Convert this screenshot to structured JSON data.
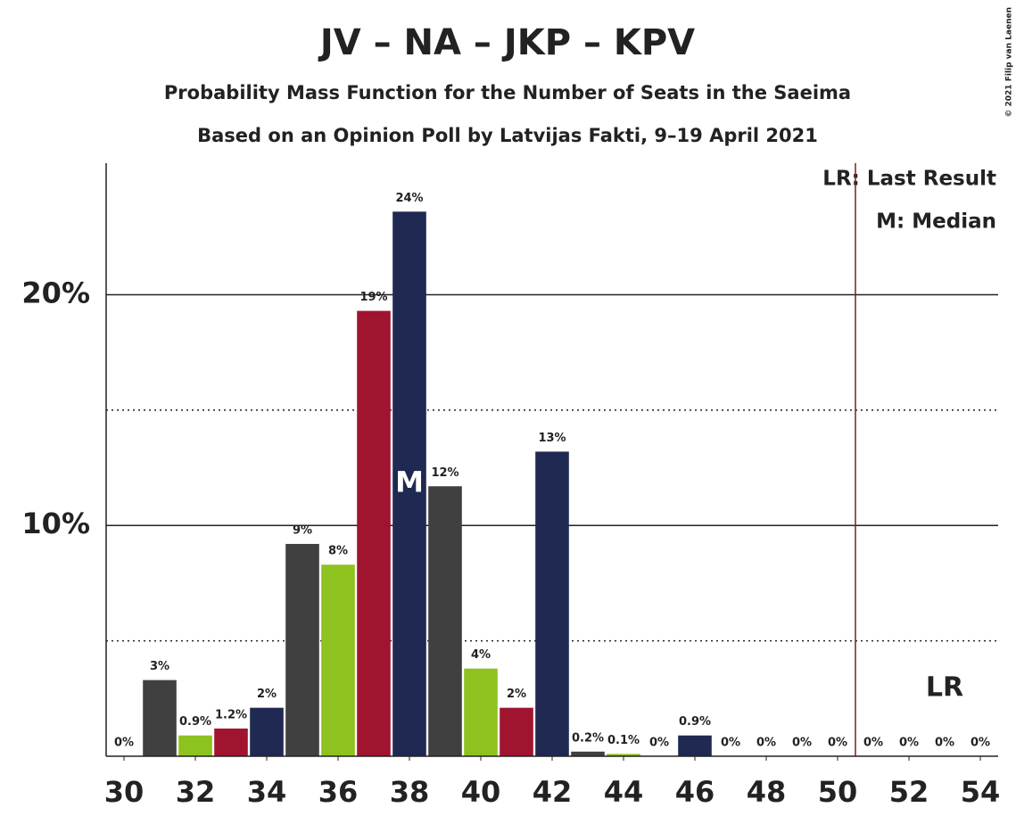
{
  "chart_data": {
    "type": "bar",
    "title": "JV – NA – JKP – KPV",
    "subtitle": "Probability Mass Function for the Number of Seats in the Saeima",
    "subtitle2": "Based on an Opinion Poll by Latvijas Fakti, 9–19 April 2021",
    "copyright": "© 2021 Filip van Laenen",
    "x": [
      30,
      31,
      32,
      33,
      34,
      35,
      36,
      37,
      38,
      39,
      40,
      41,
      42,
      43,
      44,
      45,
      46,
      47,
      48,
      49,
      50,
      51,
      52,
      53,
      54
    ],
    "values": [
      0,
      3.3,
      0.9,
      1.2,
      2.1,
      9.2,
      8.3,
      19.3,
      23.6,
      11.7,
      3.8,
      2.1,
      13.2,
      0.2,
      0.1,
      0,
      0.9,
      0,
      0,
      0,
      0,
      0,
      0,
      0,
      0
    ],
    "value_labels": [
      "0%",
      "3%",
      "0.9%",
      "1.2%",
      "2%",
      "9%",
      "8%",
      "19%",
      "24%",
      "12%",
      "4%",
      "2%",
      "13%",
      "0.2%",
      "0.1%",
      "0%",
      "0.9%",
      "0%",
      "0%",
      "0%",
      "0%",
      "0%",
      "0%",
      "0%",
      "0%"
    ],
    "colors": [
      "#1f2951",
      "#404040",
      "#8dc21f",
      "#a0142f"
    ],
    "xlim": [
      29.5,
      54.5
    ],
    "xticks": [
      30,
      32,
      34,
      36,
      38,
      40,
      42,
      44,
      46,
      48,
      50,
      52,
      54
    ],
    "ylim": [
      0,
      25.7
    ],
    "yticks": [
      {
        "value": 10,
        "label": "10%"
      },
      {
        "value": 20,
        "label": "20%"
      }
    ],
    "minor_yticks": [
      5,
      15
    ],
    "grid": true,
    "median": 38,
    "median_label": "M",
    "last_result": 50.5,
    "last_result_label": "LR",
    "last_result_color": "#7b1f1f",
    "legend": [
      "LR: Last Result",
      "M: Median"
    ]
  }
}
